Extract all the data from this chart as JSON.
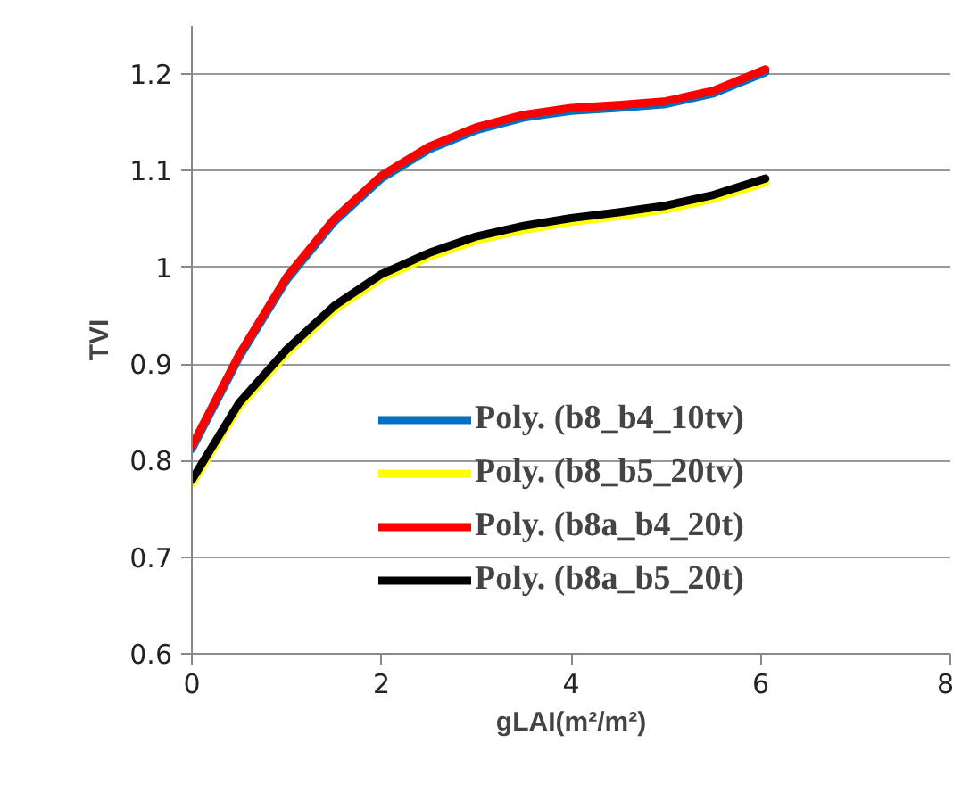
{
  "chart_data": {
    "type": "line",
    "xlabel": "gLAI(m²/m²)",
    "ylabel": "TVI",
    "xlim": [
      0,
      8
    ],
    "ylim": [
      0.6,
      1.25
    ],
    "xticks": [
      0,
      2,
      4,
      6,
      8
    ],
    "yticks": [
      0.6,
      0.7,
      0.8,
      0.9,
      1,
      1.1,
      1.2
    ],
    "grid": "y",
    "legend": "right",
    "marker": "none",
    "line_style": "solid",
    "x": [
      0,
      0.5,
      1,
      1.5,
      2,
      2.5,
      3,
      3.5,
      4,
      4.5,
      5,
      5.5,
      6.05
    ],
    "series": [
      {
        "name": "Poly. (b8_b4_10tv)",
        "color": "#0070c0",
        "values": [
          0.812,
          0.907,
          0.987,
          1.047,
          1.092,
          1.122,
          1.142,
          1.155,
          1.162,
          1.165,
          1.169,
          1.18,
          1.202
        ]
      },
      {
        "name": "Poly. (b8_b5_20tv)",
        "color": "#ffff00",
        "values": [
          0.776,
          0.856,
          0.911,
          0.956,
          0.989,
          1.011,
          1.028,
          1.039,
          1.047,
          1.053,
          1.06,
          1.071,
          1.088
        ]
      },
      {
        "name": "Poly. (b8a_b4_20t)",
        "color": "#ff0000",
        "values": [
          0.815,
          0.91,
          0.99,
          1.05,
          1.095,
          1.125,
          1.145,
          1.158,
          1.165,
          1.168,
          1.172,
          1.183,
          1.205
        ]
      },
      {
        "name": "Poly. (b8a_b5_20t)",
        "color": "#000000",
        "values": [
          0.78,
          0.86,
          0.915,
          0.96,
          0.993,
          1.015,
          1.032,
          1.043,
          1.051,
          1.057,
          1.064,
          1.075,
          1.092
        ]
      }
    ]
  }
}
